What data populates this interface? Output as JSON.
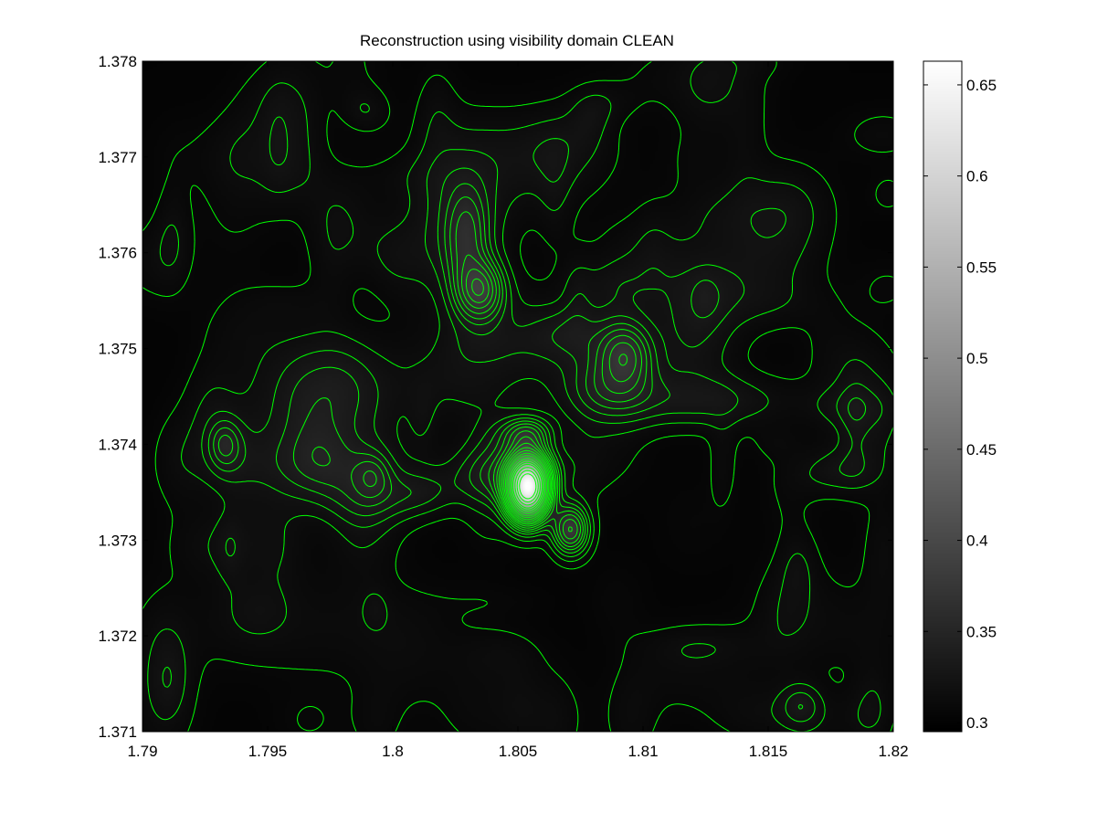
{
  "chart_data": {
    "type": "heatmap",
    "title": "Reconstruction using visibility domain CLEAN",
    "xlabel": "",
    "ylabel": "",
    "xlim": [
      1.79,
      1.82
    ],
    "ylim": [
      1.371,
      1.378
    ],
    "xticks": [
      1.79,
      1.795,
      1.8,
      1.805,
      1.81,
      1.815,
      1.82
    ],
    "xtick_labels": [
      "1.79",
      "1.795",
      "1.8",
      "1.805",
      "1.81",
      "1.815",
      "1.82"
    ],
    "yticks": [
      1.371,
      1.372,
      1.373,
      1.374,
      1.375,
      1.376,
      1.377,
      1.378
    ],
    "ytick_labels": [
      "1.371",
      "1.372",
      "1.373",
      "1.374",
      "1.375",
      "1.376",
      "1.377",
      "1.378"
    ],
    "colormap": "gray",
    "contour_color": "#00ff00",
    "background_level": 0.3,
    "colorbar": {
      "range": [
        0.295,
        0.663
      ],
      "ticks": [
        0.3,
        0.35,
        0.4,
        0.45,
        0.5,
        0.55,
        0.6,
        0.65
      ],
      "tick_labels": [
        "0.3",
        "0.35",
        "0.4",
        "0.45",
        "0.5",
        "0.55",
        "0.6",
        "0.65"
      ]
    },
    "sources": [
      {
        "x": 1.8054,
        "y": 1.37355,
        "amp": 0.34,
        "sx": 0.00055,
        "sy": 0.00022
      },
      {
        "x": 1.8071,
        "y": 1.37311,
        "amp": 0.075,
        "sx": 0.0005,
        "sy": 0.00018
      },
      {
        "x": 1.8054,
        "y": 1.37412,
        "amp": 0.045,
        "sx": 0.00065,
        "sy": 0.00012
      },
      {
        "x": 1.8035,
        "y": 1.3756,
        "amp": 0.06,
        "sx": 0.00065,
        "sy": 0.00022
      },
      {
        "x": 1.803,
        "y": 1.3762,
        "amp": 0.035,
        "sx": 0.0006,
        "sy": 0.00035
      },
      {
        "x": 1.8093,
        "y": 1.37495,
        "amp": 0.05,
        "sx": 0.00075,
        "sy": 0.00022
      },
      {
        "x": 1.809,
        "y": 1.3746,
        "amp": 0.03,
        "sx": 0.0012,
        "sy": 0.00025
      },
      {
        "x": 1.8125,
        "y": 1.37445,
        "amp": 0.022,
        "sx": 0.0025,
        "sy": 0.0002
      },
      {
        "x": 1.807,
        "y": 1.37515,
        "amp": 0.022,
        "sx": 0.0012,
        "sy": 0.00022
      },
      {
        "x": 1.7933,
        "y": 1.374,
        "amp": 0.028,
        "sx": 0.00045,
        "sy": 0.00018
      },
      {
        "x": 1.7992,
        "y": 1.37368,
        "amp": 0.022,
        "sx": 0.0005,
        "sy": 0.00016
      },
      {
        "x": 1.8163,
        "y": 1.37128,
        "amp": 0.018,
        "sx": 0.00055,
        "sy": 0.00015
      },
      {
        "x": 1.8045,
        "y": 1.3737,
        "amp": 0.02,
        "sx": 0.0015,
        "sy": 0.0002
      },
      {
        "x": 1.8025,
        "y": 1.3762,
        "amp": 0.015,
        "sx": 0.0015,
        "sy": 0.0006
      },
      {
        "x": 1.804,
        "y": 1.3748,
        "amp": 0.012,
        "sx": 0.003,
        "sy": 0.0004
      },
      {
        "x": 1.797,
        "y": 1.3738,
        "amp": 0.012,
        "sx": 0.003,
        "sy": 0.0003
      },
      {
        "x": 1.796,
        "y": 1.3721,
        "amp": 0.01,
        "sx": 0.004,
        "sy": 0.0004
      },
      {
        "x": 1.802,
        "y": 1.3767,
        "amp": 0.01,
        "sx": 0.001,
        "sy": 0.0005
      },
      {
        "x": 1.8115,
        "y": 1.3756,
        "amp": 0.01,
        "sx": 0.002,
        "sy": 0.0005
      }
    ],
    "contour_levels": [
      0.306,
      0.314,
      0.322,
      0.33,
      0.338,
      0.346,
      0.355,
      0.365,
      0.375,
      0.385,
      0.397,
      0.41,
      0.425,
      0.44,
      0.46,
      0.48,
      0.5,
      0.52,
      0.55,
      0.58,
      0.61
    ]
  }
}
